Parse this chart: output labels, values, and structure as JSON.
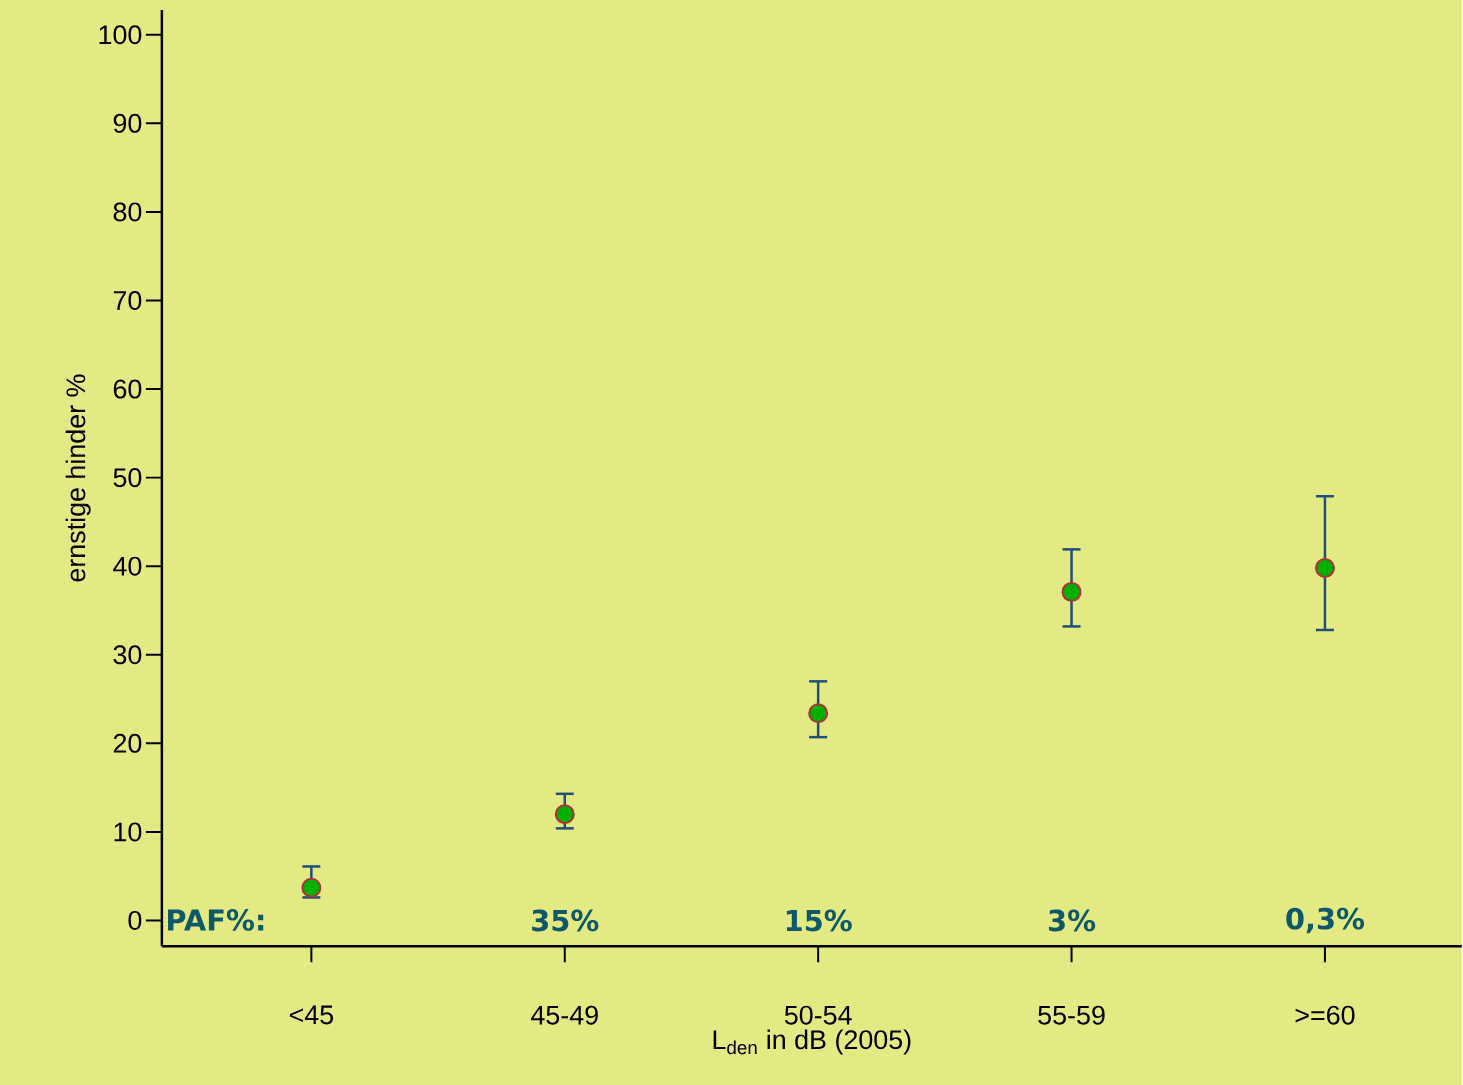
{
  "chart_data": {
    "type": "scatter",
    "categories": [
      "<45",
      "45-49",
      "50-54",
      "55-59",
      ">=60"
    ],
    "values": [
      3.7,
      12.0,
      23.4,
      37.1,
      39.8
    ],
    "errors": [
      [
        2.6,
        6.1
      ],
      [
        10.4,
        14.3
      ],
      [
        20.7,
        27.0
      ],
      [
        33.2,
        41.9
      ],
      [
        32.8,
        47.9
      ]
    ],
    "color": "#00b000",
    "marker": "circle",
    "xlabel": "L$_{den}$ in dB (2005)",
    "ylabel": "ernstige hinder %",
    "ylim": [
      -2.9,
      102.8
    ],
    "yticks": [
      0,
      10,
      20,
      30,
      40,
      50,
      60,
      70,
      80,
      90,
      100
    ],
    "annotations": [
      "PAF%:",
      "35%",
      "15%",
      "3%",
      "0,3%"
    ],
    "grid": false
  }
}
